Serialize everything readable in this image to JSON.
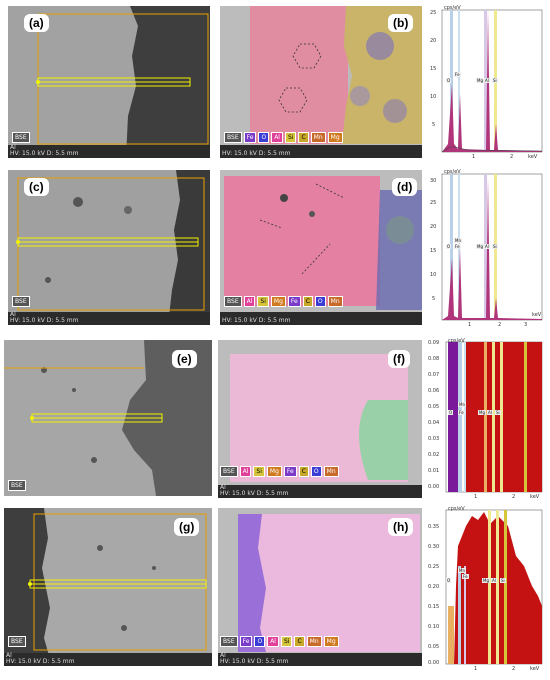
{
  "panels": [
    {
      "id": "a",
      "label": "(a)",
      "footer_top": "Al",
      "footer_bottom": "HV: 15.0 kV   D: 5.5 mm",
      "bse": "BSE",
      "legend": []
    },
    {
      "id": "b",
      "label": "(b)",
      "footer_top": "",
      "footer_bottom": "HV: 15.0 kV   D: 5.5 mm",
      "bse": "BSE",
      "legend": [
        "Fe",
        "O",
        "Al",
        "Si",
        "C",
        "Mn",
        "Mg"
      ]
    },
    {
      "id": "c",
      "label": "(c)",
      "footer_top": "Al",
      "footer_bottom": "HV: 15.0 kV   D: 5.5 mm",
      "bse": "BSE",
      "legend": []
    },
    {
      "id": "d",
      "label": "(d)",
      "footer_top": "",
      "footer_bottom": "HV: 15.0 kV   D: 5.5 mm",
      "bse": "BSE",
      "legend": [
        "Al",
        "Si",
        "Mg",
        "Fe",
        "C",
        "O",
        "Mn"
      ]
    },
    {
      "id": "e",
      "label": "(e)",
      "footer_top": "",
      "footer_bottom": "",
      "bse": "BSE",
      "legend": []
    },
    {
      "id": "f",
      "label": "(f)",
      "footer_top": "Al",
      "footer_bottom": "HV: 15.0 kV   D: 5.5 mm",
      "bse": "BSE",
      "legend": [
        "Al",
        "Si",
        "Mg",
        "Fe",
        "C",
        "O",
        "Mn"
      ]
    },
    {
      "id": "g",
      "label": "(g)",
      "footer_top": "Al",
      "footer_bottom": "HV: 15.0 kV   D: 5.5 mm",
      "bse": "BSE",
      "legend": []
    },
    {
      "id": "h",
      "label": "(h)",
      "footer_top": "Al",
      "footer_bottom": "HV: 15.0 kV   D: 5.5 mm",
      "bse": "BSE",
      "legend": [
        "Fe",
        "O",
        "Al",
        "Si",
        "C",
        "Mn",
        "Mg"
      ]
    }
  ],
  "colors": {
    "Fe": "#7a3cc8",
    "O": "#3b3bd6",
    "Al": "#e0409a",
    "Si": "#d6c53a",
    "C": "#c8a828",
    "Mn": "#c86a2a",
    "Mg": "#d07a20"
  },
  "spectra": [
    {
      "id": "s1",
      "unit": "cps/eV",
      "xunit": "keV",
      "yticks": [
        "25",
        "20",
        "15",
        "10",
        "5"
      ],
      "xticks": [
        "1",
        "2"
      ],
      "peaks": [
        "O",
        "Fe",
        "Mg",
        "Al",
        "Si"
      ]
    },
    {
      "id": "s2",
      "unit": "cps/eV",
      "xunit": "keV",
      "yticks": [
        "30",
        "25",
        "20",
        "15",
        "10",
        "5"
      ],
      "xticks": [
        "1",
        "2",
        "3"
      ],
      "peaks": [
        "O",
        "Mn",
        "Fe",
        "Mg",
        "Al",
        "Si"
      ]
    },
    {
      "id": "s3",
      "unit": "cps/eV",
      "xunit": "keV",
      "yticks": [
        "0.09",
        "0.08",
        "0.07",
        "0.06",
        "0.05",
        "0.04",
        "0.03",
        "0.02",
        "0.01",
        "0.00"
      ],
      "xticks": [
        "1",
        "2"
      ],
      "peaks": [
        "O",
        "Mn",
        "Fe",
        "Mg",
        "Al",
        "Si"
      ]
    },
    {
      "id": "s4",
      "unit": "cps/eV",
      "xunit": "keV",
      "yticks": [
        "0.35",
        "0.30",
        "0.25",
        "0.20",
        "0.15",
        "0.10",
        "0.05",
        "0.00"
      ],
      "xticks": [
        "1",
        "2"
      ],
      "peaks": [
        "O",
        "Mn",
        "Fe",
        "Mg",
        "Al",
        "Si"
      ]
    }
  ]
}
